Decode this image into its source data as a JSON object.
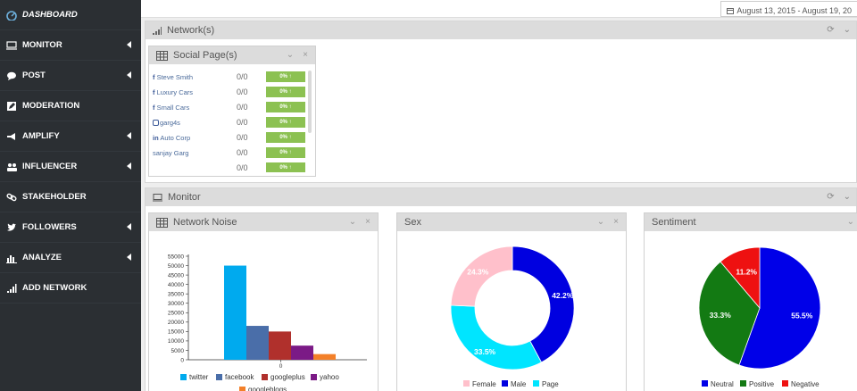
{
  "sidebar": {
    "items": [
      {
        "label": "DASHBOARD",
        "icon": "dashboard-icon",
        "caret": false,
        "active": true
      },
      {
        "label": "MONITOR",
        "icon": "monitor-icon",
        "caret": true
      },
      {
        "label": "POST",
        "icon": "comment-icon",
        "caret": true
      },
      {
        "label": "MODERATION",
        "icon": "edit-icon",
        "caret": false
      },
      {
        "label": "AMPLIFY",
        "icon": "bullhorn-icon",
        "caret": true
      },
      {
        "label": "INFLUENCER",
        "icon": "users-icon",
        "caret": true
      },
      {
        "label": "STAKEHOLDER",
        "icon": "link-icon",
        "caret": false
      },
      {
        "label": "FOLLOWERS",
        "icon": "twitter-icon",
        "caret": true
      },
      {
        "label": "ANALYZE",
        "icon": "bar-chart-icon",
        "caret": true
      },
      {
        "label": "ADD NETWORK",
        "icon": "signal-icon",
        "caret": false
      }
    ]
  },
  "header": {
    "date_range": "August 13, 2015 - August 19, 20"
  },
  "sections": {
    "network": {
      "title": "Network(s)"
    },
    "monitor": {
      "title": "Monitor"
    }
  },
  "social_page": {
    "title": "Social Page(s)",
    "rows": [
      {
        "network": "f",
        "name": "Steve Smith",
        "value": "0/0",
        "badge": "0% ↑"
      },
      {
        "network": "f",
        "name": "Luxury Cars",
        "value": "0/0",
        "badge": "0% ↑"
      },
      {
        "network": "f",
        "name": "Small Cars",
        "value": "0/0",
        "badge": "0% ↑"
      },
      {
        "network": "ig",
        "name": "garg4s",
        "value": "0/0",
        "badge": "0% ↑"
      },
      {
        "network": "in",
        "name": "Auto Corp",
        "value": "0/0",
        "badge": "0% ↑"
      },
      {
        "network": "",
        "name": "sanjay Garg",
        "value": "0/0",
        "badge": "0% ↑"
      },
      {
        "network": "",
        "name": "",
        "value": "0/0",
        "badge": "0% ↑"
      }
    ]
  },
  "panels": {
    "noise": {
      "title": "Network Noise"
    },
    "sex": {
      "title": "Sex"
    },
    "sentiment": {
      "title": "Sentiment"
    }
  },
  "colors": {
    "twitter": "#00aaee",
    "facebook": "#4a6ea9",
    "googleplus": "#b0302c",
    "yahoo": "#7b1a86",
    "googleblogs": "#f38029",
    "female": "#ffc0cb",
    "male": "#0000e0",
    "page": "#00e5ff",
    "neutral": "#0000e8",
    "positive": "#137a13",
    "negative": "#ee1111"
  },
  "chart_data": [
    {
      "type": "bar",
      "title": "Network Noise",
      "categories": [
        "0"
      ],
      "series": [
        {
          "name": "twitter",
          "values": [
            50000
          ]
        },
        {
          "name": "facebook",
          "values": [
            18000
          ]
        },
        {
          "name": "googleplus",
          "values": [
            15000
          ]
        },
        {
          "name": "yahoo",
          "values": [
            7500
          ]
        },
        {
          "name": "googleblogs",
          "values": [
            3000
          ]
        }
      ],
      "yticks": [
        0,
        5000,
        10000,
        15000,
        20000,
        25000,
        30000,
        35000,
        40000,
        45000,
        50000,
        55000
      ],
      "ylim": [
        0,
        55000
      ],
      "legend": "bottom"
    },
    {
      "type": "pie",
      "title": "Sex",
      "donut": true,
      "labels": [
        "Male",
        "Page",
        "Female"
      ],
      "values": [
        42.2,
        33.5,
        24.3
      ],
      "display": [
        "42.2%",
        "33.5%",
        "24.3%"
      ],
      "legend_order": [
        "Female",
        "Male",
        "Page"
      ],
      "legend": "bottom"
    },
    {
      "type": "pie",
      "title": "Sentiment",
      "labels": [
        "Neutral",
        "Positive",
        "Negative"
      ],
      "values": [
        55.5,
        33.3,
        11.2
      ],
      "display": [
        "55.5%",
        "33.3%",
        "11.2%"
      ],
      "legend": "bottom"
    }
  ]
}
